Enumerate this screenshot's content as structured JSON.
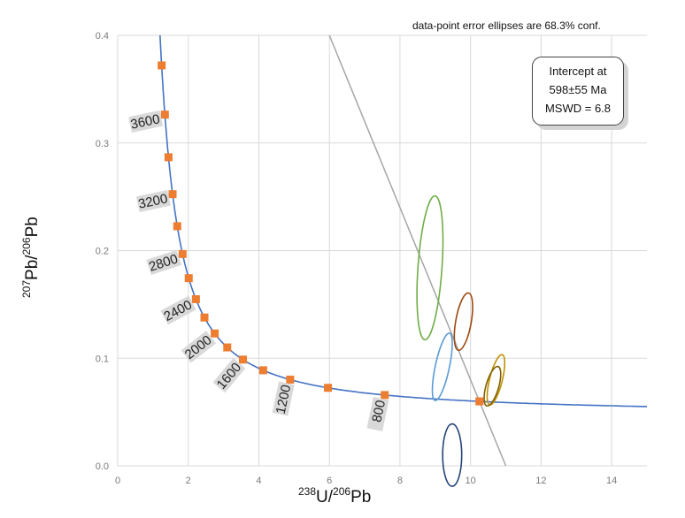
{
  "chart_data": {
    "type": "scatter",
    "title": "",
    "note": "data-point error ellipses are 68.3% conf.",
    "intercept_box": [
      "Intercept at",
      "598±55 Ma",
      "MSWD = 6.8"
    ],
    "xlabel": {
      "sup1": "238",
      "base1": "U/",
      "sup2": "206",
      "base2": "Pb"
    },
    "ylabel": {
      "sup1": "207",
      "base1": "Pb/",
      "sup2": "206",
      "base2": "Pb"
    },
    "xlim": [
      0,
      15
    ],
    "ylim": [
      0,
      0.4
    ],
    "xticks": [
      0,
      2,
      4,
      6,
      8,
      10,
      12,
      14
    ],
    "yticks": [
      0.0,
      0.1,
      0.2,
      0.3,
      0.4
    ],
    "xtick_labels": [
      "0",
      "2",
      "4",
      "6",
      "8",
      "10",
      "12",
      "14"
    ],
    "ytick_labels": [
      "0.0",
      "0.1",
      "0.2",
      "0.3",
      "0.4"
    ],
    "concordia_age_labels": [
      {
        "age": 3600,
        "text": "3600"
      },
      {
        "age": 3200,
        "text": "3200"
      },
      {
        "age": 2800,
        "text": "2800"
      },
      {
        "age": 2400,
        "text": "2400"
      },
      {
        "age": 2000,
        "text": "2000"
      },
      {
        "age": 1600,
        "text": "1600"
      },
      {
        "age": 1200,
        "text": "1200"
      },
      {
        "age": 800,
        "text": "800"
      }
    ],
    "concordia_age_markers": [
      3800,
      3600,
      3400,
      3200,
      3000,
      2800,
      2600,
      2400,
      2200,
      2000,
      1800,
      1600,
      1400,
      1200,
      1000,
      800,
      600
    ],
    "discordia_line": {
      "x1": 6.0,
      "y1": 0.4,
      "x2": 11.0,
      "y2": 0.0
    },
    "ellipses": [
      {
        "name": "green",
        "cx": 8.85,
        "cy": 0.184,
        "rx": 0.34,
        "ry": 0.067,
        "angle_deg": 4,
        "color": "#70ad47"
      },
      {
        "name": "brown",
        "cx": 9.8,
        "cy": 0.134,
        "rx": 0.22,
        "ry": 0.027,
        "angle_deg": 10,
        "color": "#9e480e"
      },
      {
        "name": "blue",
        "cx": 9.2,
        "cy": 0.092,
        "rx": 0.2,
        "ry": 0.032,
        "angle_deg": 12,
        "color": "#5b9bd5"
      },
      {
        "name": "gold",
        "cx": 10.72,
        "cy": 0.08,
        "rx": 0.18,
        "ry": 0.024,
        "angle_deg": 14,
        "color": "#bf9000"
      },
      {
        "name": "olive",
        "cx": 10.62,
        "cy": 0.074,
        "rx": 0.18,
        "ry": 0.019,
        "angle_deg": 16,
        "color": "#7f6000"
      },
      {
        "name": "navy",
        "cx": 9.48,
        "cy": 0.01,
        "rx": 0.27,
        "ry": 0.029,
        "angle_deg": 0,
        "color": "#264478"
      }
    ],
    "colors": {
      "concordia": "#4472c4",
      "marker": "#ed7d31",
      "discordia": "#a6a6a6",
      "grid": "#d9d9d9",
      "label_bg": "#d9d9d9"
    }
  }
}
